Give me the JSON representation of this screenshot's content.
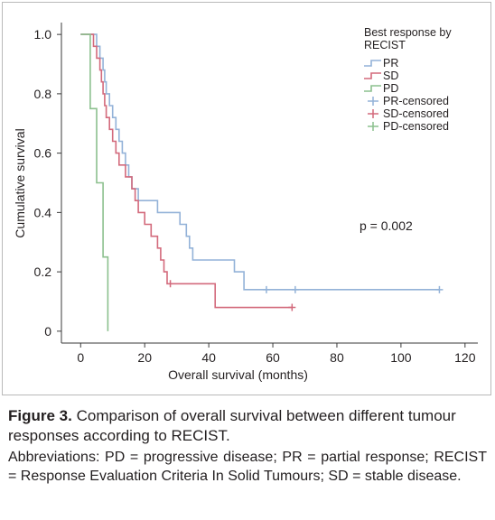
{
  "chart_data": {
    "type": "line",
    "subtype": "kaplan-meier step",
    "xlabel": "Overall survival (months)",
    "ylabel": "Cumulative survival",
    "xlim": [
      -6,
      124
    ],
    "ylim": [
      -0.04,
      1.04
    ],
    "xticks": [
      0,
      20,
      40,
      60,
      80,
      100,
      120
    ],
    "yticks": [
      0,
      0.2,
      0.4,
      0.6,
      0.8,
      1.0
    ],
    "ytick_labels": [
      "0",
      "0.2",
      "0.4",
      "0.6",
      "0.8",
      "1.0"
    ],
    "grid": false,
    "legend_title": "Best response by RECIST",
    "legend_position": "top-right",
    "annotation": "p = 0.002",
    "series": [
      {
        "name": "PR",
        "color": "#93b2d8",
        "points": [
          [
            0,
            1.0
          ],
          [
            5,
            1.0
          ],
          [
            5,
            0.96
          ],
          [
            6,
            0.96
          ],
          [
            6,
            0.92
          ],
          [
            7,
            0.92
          ],
          [
            7,
            0.88
          ],
          [
            7.5,
            0.88
          ],
          [
            7.5,
            0.84
          ],
          [
            8,
            0.84
          ],
          [
            8,
            0.8
          ],
          [
            9,
            0.8
          ],
          [
            9,
            0.76
          ],
          [
            10,
            0.76
          ],
          [
            10,
            0.72
          ],
          [
            11,
            0.72
          ],
          [
            11,
            0.68
          ],
          [
            12,
            0.68
          ],
          [
            12,
            0.64
          ],
          [
            13,
            0.64
          ],
          [
            13,
            0.6
          ],
          [
            14,
            0.6
          ],
          [
            14,
            0.56
          ],
          [
            15,
            0.56
          ],
          [
            15,
            0.52
          ],
          [
            16,
            0.52
          ],
          [
            16,
            0.48
          ],
          [
            18,
            0.48
          ],
          [
            18,
            0.44
          ],
          [
            24,
            0.44
          ],
          [
            24,
            0.4
          ],
          [
            31,
            0.4
          ],
          [
            31,
            0.36
          ],
          [
            33,
            0.36
          ],
          [
            33,
            0.32
          ],
          [
            34,
            0.32
          ],
          [
            34,
            0.28
          ],
          [
            35,
            0.28
          ],
          [
            35,
            0.24
          ],
          [
            48,
            0.24
          ],
          [
            48,
            0.2
          ],
          [
            51,
            0.2
          ],
          [
            51,
            0.14
          ],
          [
            112,
            0.14
          ]
        ],
        "censored": [
          [
            58,
            0.14
          ],
          [
            67,
            0.14
          ],
          [
            112,
            0.14
          ]
        ]
      },
      {
        "name": "SD",
        "color": "#d36a7c",
        "points": [
          [
            0,
            1.0
          ],
          [
            4,
            1.0
          ],
          [
            4,
            0.96
          ],
          [
            5,
            0.96
          ],
          [
            5,
            0.92
          ],
          [
            6,
            0.92
          ],
          [
            6,
            0.88
          ],
          [
            6.5,
            0.88
          ],
          [
            6.5,
            0.84
          ],
          [
            7,
            0.84
          ],
          [
            7,
            0.8
          ],
          [
            7.5,
            0.8
          ],
          [
            7.5,
            0.76
          ],
          [
            8,
            0.76
          ],
          [
            8,
            0.72
          ],
          [
            9,
            0.72
          ],
          [
            9,
            0.68
          ],
          [
            10,
            0.68
          ],
          [
            10,
            0.64
          ],
          [
            11,
            0.64
          ],
          [
            11,
            0.6
          ],
          [
            12,
            0.6
          ],
          [
            12,
            0.56
          ],
          [
            14,
            0.56
          ],
          [
            14,
            0.52
          ],
          [
            16,
            0.52
          ],
          [
            16,
            0.48
          ],
          [
            17,
            0.48
          ],
          [
            17,
            0.44
          ],
          [
            18,
            0.44
          ],
          [
            18,
            0.4
          ],
          [
            20,
            0.4
          ],
          [
            20,
            0.36
          ],
          [
            22,
            0.36
          ],
          [
            22,
            0.32
          ],
          [
            24,
            0.32
          ],
          [
            24,
            0.28
          ],
          [
            25,
            0.28
          ],
          [
            25,
            0.24
          ],
          [
            26,
            0.24
          ],
          [
            26,
            0.2
          ],
          [
            27,
            0.2
          ],
          [
            27,
            0.16
          ],
          [
            42,
            0.16
          ],
          [
            42,
            0.08
          ],
          [
            66,
            0.08
          ]
        ],
        "censored": [
          [
            28,
            0.16
          ],
          [
            66,
            0.08
          ]
        ]
      },
      {
        "name": "PD",
        "color": "#8cc08e",
        "points": [
          [
            0,
            1.0
          ],
          [
            3,
            1.0
          ],
          [
            3,
            0.75
          ],
          [
            5,
            0.75
          ],
          [
            5,
            0.5
          ],
          [
            7,
            0.5
          ],
          [
            7,
            0.25
          ],
          [
            8.5,
            0.25
          ],
          [
            8.5,
            0.0
          ]
        ],
        "censored": []
      }
    ],
    "legend": [
      {
        "label": "PR",
        "series": "PR",
        "kind": "line"
      },
      {
        "label": "SD",
        "series": "SD",
        "kind": "line"
      },
      {
        "label": "PD",
        "series": "PD",
        "kind": "line"
      },
      {
        "label": "PR-censored",
        "series": "PR",
        "kind": "censor"
      },
      {
        "label": "SD-censored",
        "series": "SD",
        "kind": "censor"
      },
      {
        "label": "PD-censored",
        "series": "PD",
        "kind": "censor"
      }
    ]
  },
  "caption": {
    "figure_label": "Figure 3.",
    "title": "Comparison of overall survival between different tumour responses according to RECIST.",
    "notes": "Abbreviations: PD = progressive disease; PR = partial response; RECIST = Response Evaluation Criteria In Solid Tumours; SD = stable disease."
  }
}
